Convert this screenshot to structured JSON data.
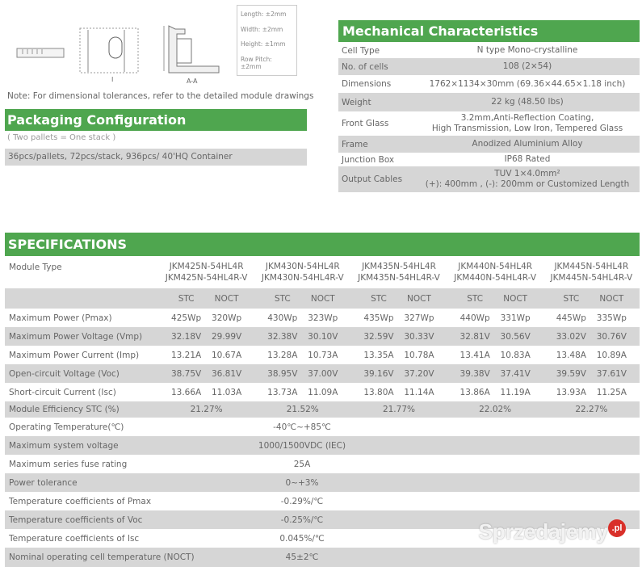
{
  "drawings": {
    "section_label": "I",
    "aa_label": "A-A"
  },
  "tolerances": [
    "Length: ±2mm",
    "Width: ±2mm",
    "Height: ±1mm",
    "Row Pitch: ±2mm"
  ],
  "note": "Note: For dimensional tolerances, refer to the detailed module drawings",
  "packaging": {
    "title": "Packaging Configuration",
    "subtitle": "( Two pallets = One stack )",
    "value": "36pcs/pallets, 72pcs/stack, 936pcs/ 40'HQ Container"
  },
  "mechanical": {
    "title": "Mechanical Characteristics",
    "rows": [
      {
        "k": "Cell  Type",
        "v": "N type Mono-crystalline"
      },
      {
        "k": "No. of cells",
        "v": "108 (2×54)"
      },
      {
        "k": "Dimensions",
        "v": "1762×1134×30mm (69.36×44.65×1.18 inch)"
      },
      {
        "k": "Weight",
        "v": "22 kg (48.50 lbs)"
      },
      {
        "k": "Front Glass",
        "v": "3.2mm,Anti-Reflection Coating,",
        "v2": "High Transmission, Low Iron, Tempered Glass"
      },
      {
        "k": "Frame",
        "v": "Anodized Aluminium Alloy"
      },
      {
        "k": "Junction Box",
        "v": "IP68 Rated"
      },
      {
        "k": "Output Cables",
        "v": "TUV  1×4.0mm²",
        "v2": "(+): 400mm , (-): 200mm or Customized Length"
      }
    ]
  },
  "specifications": {
    "title": "SPECIFICATIONS",
    "module_type_label": "Module Type",
    "models": [
      [
        "JKM425N-54HL4R",
        "JKM425N-54HL4R-V"
      ],
      [
        "JKM430N-54HL4R",
        "JKM430N-54HL4R-V"
      ],
      [
        "JKM435N-54HL4R",
        "JKM435N-54HL4R-V"
      ],
      [
        "JKM440N-54HL4R",
        "JKM440N-54HL4R-V"
      ],
      [
        "JKM445N-54HL4R",
        "JKM445N-54HL4R-V"
      ]
    ],
    "sub_headers": [
      "STC",
      "NOCT"
    ],
    "rows": [
      {
        "k": "Maximum Power (Pmax)",
        "v": [
          "425Wp",
          "320Wp",
          "430Wp",
          "323Wp",
          "435Wp",
          "327Wp",
          "440Wp",
          "331Wp",
          "445Wp",
          "335Wp"
        ]
      },
      {
        "k": "Maximum Power Voltage (Vmp)",
        "v": [
          "32.18V",
          "29.99V",
          "32.38V",
          "30.10V",
          "32.59V",
          "30.33V",
          "32.81V",
          "30.56V",
          "33.02V",
          "30.76V"
        ]
      },
      {
        "k": "Maximum Power Current (Imp)",
        "v": [
          "13.21A",
          "10.67A",
          "13.28A",
          "10.73A",
          "13.35A",
          "10.78A",
          "13.41A",
          "10.83A",
          "13.48A",
          "10.89A"
        ]
      },
      {
        "k": "Open-circuit Voltage (Voc)",
        "v": [
          "38.75V",
          "36.81V",
          "38.95V",
          "37.00V",
          "39.16V",
          "37.20V",
          "39.38V",
          "37.41V",
          "39.59V",
          "37.61V"
        ]
      },
      {
        "k": "Short-circuit Current (Isc)",
        "v": [
          "13.66A",
          "11.03A",
          "13.73A",
          "11.09A",
          "13.80A",
          "11.14A",
          "13.86A",
          "11.19A",
          "13.93A",
          "11.25A"
        ]
      }
    ],
    "efficiency": {
      "k": "Module Efficiency STC (%)",
      "v": [
        "21.27%",
        "21.52%",
        "21.77%",
        "22.02%",
        "22.27%"
      ]
    },
    "general": [
      {
        "k": "Operating Temperature(℃)",
        "v": "-40℃~+85℃"
      },
      {
        "k": "Maximum system voltage",
        "v": "1000/1500VDC (IEC)"
      },
      {
        "k": "Maximum series fuse rating",
        "v": "25A"
      },
      {
        "k": "Power tolerance",
        "v": "0~+3%"
      },
      {
        "k": "Temperature coefficients of Pmax",
        "v": "-0.29%/℃"
      },
      {
        "k": "Temperature coefficients of Voc",
        "v": "-0.25%/℃"
      },
      {
        "k": "Temperature coefficients of Isc",
        "v": "0.045%/℃"
      },
      {
        "k": "Nominal operating cell temperature  (NOCT)",
        "v": "45±2℃"
      }
    ]
  },
  "colors": {
    "green": "#4fa64f",
    "gray_row": "#d6d6d6"
  },
  "watermark": {
    "text": "Sprzedajemy",
    "badge": ".pl"
  }
}
